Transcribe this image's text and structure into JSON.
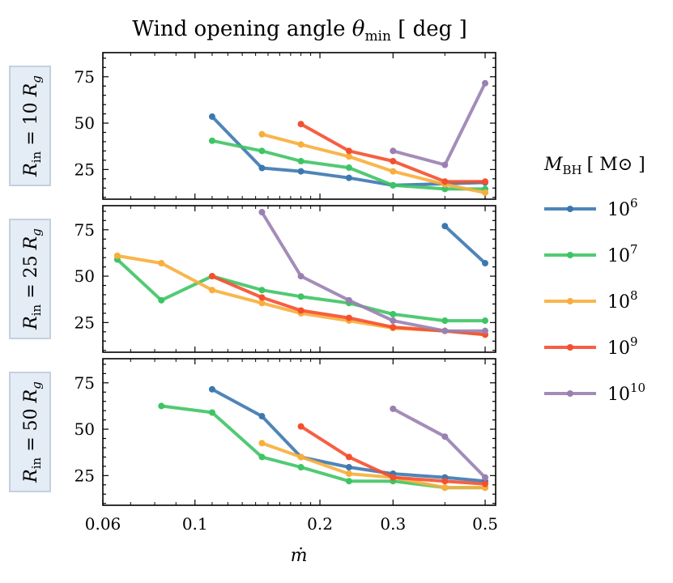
{
  "chart_data": {
    "type": "line",
    "title_prefix": "Wind opening angle ",
    "title_symbol": "θ",
    "title_subscript": "min",
    "title_suffix": " [ deg ]",
    "xlabel": "ṁ",
    "x_scale": "log",
    "xlim": [
      0.06,
      0.53
    ],
    "ylim": [
      9,
      88
    ],
    "x_tick_labels": [
      "0.06",
      "0.1",
      "0.2",
      "0.3",
      "0.5"
    ],
    "x_ticks": [
      0.06,
      0.1,
      0.2,
      0.3,
      0.5
    ],
    "y_ticks": [
      25,
      50,
      75
    ],
    "y_tick_labels": [
      "25",
      "50",
      "75"
    ],
    "legend": {
      "title_symbol": "M",
      "title_subscript": "BH",
      "title_unit": "[ M⊙ ]",
      "placement": "right",
      "entries": [
        {
          "base": "10",
          "exp": "6",
          "color": "#3c78b0"
        },
        {
          "base": "10",
          "exp": "7",
          "color": "#3ec464"
        },
        {
          "base": "10",
          "exp": "8",
          "color": "#f8ae3a"
        },
        {
          "base": "10",
          "exp": "9",
          "color": "#f44f2e"
        },
        {
          "base": "10",
          "exp": "10",
          "color": "#9a80b0"
        }
      ]
    },
    "panels": [
      {
        "label_main": "R",
        "label_sub": "in",
        "label_eq": " = 10 ",
        "label_unit": "R",
        "label_unit_sub": "g",
        "series": [
          {
            "name": "10^6",
            "x": [
              0.11,
              0.145,
              0.18,
              0.235,
              0.3,
              0.5
            ],
            "y": [
              53.5,
              25.8,
              24,
              20.5,
              16.5,
              18
            ]
          },
          {
            "name": "10^7",
            "x": [
              0.11,
              0.145,
              0.18,
              0.235,
              0.3,
              0.4,
              0.5
            ],
            "y": [
              40.5,
              35,
              29.5,
              26,
              16.5,
              14.5,
              14.5
            ]
          },
          {
            "name": "10^8",
            "x": [
              0.145,
              0.18,
              0.235,
              0.3,
              0.4,
              0.5
            ],
            "y": [
              44,
              38.5,
              32,
              24,
              17,
              12.5
            ]
          },
          {
            "name": "10^9",
            "x": [
              0.18,
              0.235,
              0.3,
              0.4,
              0.5
            ],
            "y": [
              49.5,
              35,
              29.5,
              18.5,
              18.5
            ]
          },
          {
            "name": "10^10",
            "x": [
              0.3,
              0.4,
              0.5
            ],
            "y": [
              35,
              27.5,
              71.5
            ]
          }
        ]
      },
      {
        "label_main": "R",
        "label_sub": "in",
        "label_eq": " = 25 ",
        "label_unit": "R",
        "label_unit_sub": "g",
        "series": [
          {
            "name": "10^6",
            "x": [
              0.4,
              0.5
            ],
            "y": [
              77,
              57
            ]
          },
          {
            "name": "10^7",
            "x": [
              0.065,
              0.083,
              0.11,
              0.145,
              0.18,
              0.235,
              0.3,
              0.4,
              0.5
            ],
            "y": [
              59,
              37,
              50,
              42.5,
              39,
              35.5,
              29.5,
              26,
              26
            ]
          },
          {
            "name": "10^8",
            "x": [
              0.065,
              0.083,
              0.11,
              0.145,
              0.18,
              0.235,
              0.3,
              0.4,
              0.5
            ],
            "y": [
              61,
              57,
              42.5,
              35.5,
              30,
              26,
              22,
              20.5,
              18.5
            ]
          },
          {
            "name": "10^9",
            "x": [
              0.11,
              0.145,
              0.18,
              0.235,
              0.3,
              0.4,
              0.5
            ],
            "y": [
              50,
              38.5,
              31.5,
              27.5,
              22.5,
              20.5,
              18.5
            ]
          },
          {
            "name": "10^10",
            "x": [
              0.145,
              0.18,
              0.235,
              0.3,
              0.4,
              0.5
            ],
            "y": [
              84.5,
              50,
              37,
              26,
              20.5,
              20.5
            ]
          }
        ]
      },
      {
        "label_main": "R",
        "label_sub": "in",
        "label_eq": " = 50 ",
        "label_unit": "R",
        "label_unit_sub": "g",
        "series": [
          {
            "name": "10^6",
            "x": [
              0.11,
              0.145,
              0.18,
              0.235,
              0.3,
              0.4,
              0.5
            ],
            "y": [
              71.5,
              57,
              35,
              29.5,
              26,
              24,
              22
            ]
          },
          {
            "name": "10^7",
            "x": [
              0.083,
              0.11,
              0.145,
              0.18,
              0.235,
              0.3,
              0.4,
              0.5
            ],
            "y": [
              62.5,
              59,
              35,
              29.5,
              22,
              22,
              18.5,
              18.5
            ]
          },
          {
            "name": "10^8",
            "x": [
              0.145,
              0.18,
              0.235,
              0.3,
              0.4,
              0.5
            ],
            "y": [
              42.5,
              35,
              26,
              24,
              18.5,
              18.5
            ]
          },
          {
            "name": "10^9",
            "x": [
              0.18,
              0.235,
              0.3,
              0.4,
              0.5
            ],
            "y": [
              51.5,
              35,
              24,
              22,
              20.5
            ]
          },
          {
            "name": "10^10",
            "x": [
              0.3,
              0.4,
              0.5
            ],
            "y": [
              61,
              46,
              24
            ]
          }
        ]
      }
    ]
  }
}
